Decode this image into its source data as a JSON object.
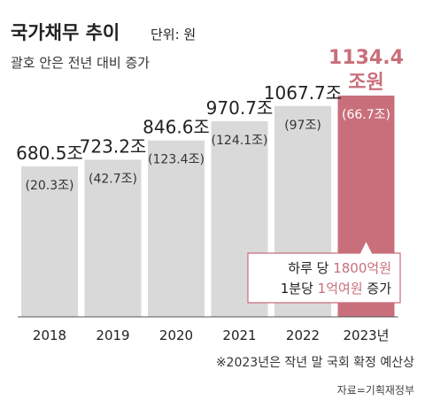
{
  "chart_data": {
    "type": "bar",
    "title": "국가채무 추이",
    "unit": "단위: 원",
    "subtitle": "괄호 안은 전년 대비 증가",
    "categories": [
      "2018",
      "2019",
      "2020",
      "2021",
      "2022",
      "2023년"
    ],
    "values": [
      680.5,
      723.2,
      846.6,
      970.7,
      1067.7,
      1134.4
    ],
    "value_labels": [
      "680.5조",
      "723.2조",
      "846.6조",
      "970.7조",
      "1067.7조",
      "1134.4"
    ],
    "highlight_value_unit": "조원",
    "change_labels": [
      "(20.3조)",
      "(42.7조)",
      "(123.4조)",
      "(124.1조)",
      "(97조)",
      "(66.7조)"
    ],
    "annotation": {
      "line1": [
        {
          "text": "하루 당 ",
          "accent": false
        },
        {
          "text": "1800억원",
          "accent": true
        }
      ],
      "line2": [
        {
          "text": "1분당 ",
          "accent": false
        },
        {
          "text": "1억여원",
          "accent": true
        },
        {
          "text": " 증가",
          "accent": false
        }
      ]
    },
    "footnote": "※2023년은 작년 말 국회 확정 예산상",
    "source": "자료=기획재정부",
    "colors": {
      "bar": "#d9d9d9",
      "highlight": "#c96f7c",
      "text": "#222222",
      "annotation_border": "#c96f7c"
    }
  }
}
